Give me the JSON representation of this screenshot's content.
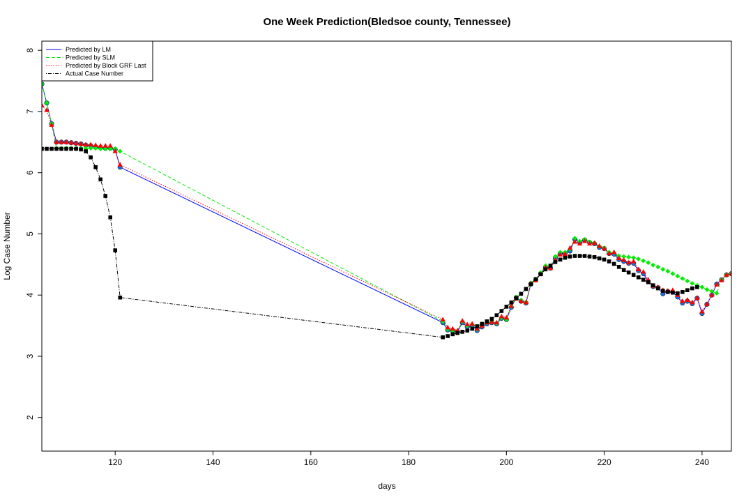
{
  "chart_data": {
    "type": "line",
    "title": "One Week Prediction(Bledsoe county, Tennessee)",
    "xlabel": "days",
    "ylabel": "Log Case Number",
    "xlim": [
      105,
      246
    ],
    "ylim": [
      1.45,
      8.15
    ],
    "xticks": [
      120,
      140,
      160,
      180,
      200,
      220,
      240
    ],
    "yticks": [
      2,
      3,
      4,
      5,
      6,
      7,
      8
    ],
    "grid": false,
    "legend_position": "top-left",
    "legend": [
      {
        "label": "Predicted by LM",
        "color": "#0000ff",
        "style": "solid"
      },
      {
        "label": "Predicted by SLM",
        "color": "#00ee00",
        "style": "dashed"
      },
      {
        "label": "Predicted by Block GRF Last",
        "color": "#ff0000",
        "style": "dotted"
      },
      {
        "label": "Actual Case Number",
        "color": "#000000",
        "style": "dotdash"
      }
    ],
    "series": [
      {
        "name": "Predicted by LM",
        "color": "#0000ff",
        "marker": "circle",
        "x": [
          105,
          106,
          107,
          108,
          109,
          110,
          111,
          112,
          113,
          114,
          115,
          116,
          117,
          118,
          119,
          120,
          121,
          187,
          188,
          189,
          190,
          191,
          192,
          193,
          194,
          195,
          196,
          197,
          198,
          199,
          200,
          201,
          202,
          203,
          204,
          205,
          206,
          207,
          208,
          209,
          210,
          211,
          212,
          213,
          214,
          215,
          216,
          217,
          218,
          219,
          220,
          221,
          222,
          223,
          224,
          225,
          226,
          227,
          228,
          229,
          230,
          231,
          232,
          233,
          234,
          235,
          236,
          237,
          238,
          239,
          240,
          241,
          242,
          243,
          244,
          245,
          246
        ],
        "y": [
          7.45,
          7.14,
          6.8,
          6.5,
          6.5,
          6.5,
          6.49,
          6.48,
          6.47,
          6.45,
          6.44,
          6.42,
          6.41,
          6.4,
          6.4,
          6.38,
          6.09,
          3.55,
          3.43,
          3.42,
          3.4,
          3.55,
          3.48,
          3.5,
          3.42,
          3.48,
          3.53,
          3.55,
          3.53,
          3.62,
          3.6,
          3.8,
          3.96,
          3.9,
          3.87,
          4.18,
          4.25,
          4.35,
          4.45,
          4.44,
          4.6,
          4.68,
          4.68,
          4.72,
          4.91,
          4.86,
          4.9,
          4.86,
          4.84,
          4.78,
          4.76,
          4.68,
          4.67,
          4.58,
          4.55,
          4.52,
          4.52,
          4.4,
          4.35,
          4.22,
          4.14,
          4.12,
          4.02,
          4.06,
          4.05,
          3.97,
          3.87,
          3.9,
          3.86,
          3.95,
          3.7,
          3.85,
          4.0,
          4.18,
          4.25,
          4.33,
          4.35
        ]
      },
      {
        "name": "Predicted by SLM",
        "color": "#00ee00",
        "marker": "diamond",
        "x": [
          105,
          106,
          107,
          108,
          109,
          110,
          111,
          112,
          113,
          114,
          115,
          116,
          117,
          118,
          119,
          120,
          121,
          187,
          188,
          189,
          190,
          191,
          192,
          193,
          194,
          195,
          196,
          197,
          198,
          199,
          200,
          201,
          202,
          203,
          204,
          205,
          206,
          207,
          208,
          209,
          210,
          211,
          212,
          213,
          214,
          215,
          216,
          217,
          218,
          219,
          220,
          221,
          222,
          223,
          224,
          225,
          226,
          227,
          228,
          229,
          230,
          231,
          232,
          233,
          234,
          235,
          236,
          237,
          238,
          239,
          240,
          241,
          242,
          243,
          244,
          245,
          246
        ],
        "y": [
          7.45,
          7.14,
          6.8,
          6.4,
          6.4,
          6.4,
          6.4,
          6.4,
          6.4,
          6.4,
          6.4,
          6.4,
          6.39,
          6.39,
          6.39,
          6.39,
          6.35,
          3.57,
          3.44,
          3.42,
          3.4,
          3.57,
          3.5,
          3.52,
          3.44,
          3.5,
          3.55,
          3.56,
          3.54,
          3.63,
          3.6,
          3.82,
          3.97,
          3.92,
          3.88,
          4.2,
          4.26,
          4.37,
          4.48,
          4.47,
          4.63,
          4.7,
          4.7,
          4.75,
          4.93,
          4.88,
          4.91,
          4.87,
          4.85,
          4.8,
          4.77,
          4.7,
          4.69,
          4.64,
          4.63,
          4.62,
          4.61,
          4.59,
          4.56,
          4.53,
          4.49,
          4.46,
          4.42,
          4.39,
          4.35,
          4.31,
          4.27,
          4.23,
          4.19,
          4.16,
          4.13,
          4.09,
          4.06,
          4.03,
          4.25,
          4.33,
          4.35
        ]
      },
      {
        "name": "Predicted by Block GRF Last",
        "color": "#ff0000",
        "marker": "triangle",
        "x": [
          105,
          106,
          107,
          108,
          109,
          110,
          111,
          112,
          113,
          114,
          115,
          116,
          117,
          118,
          119,
          120,
          121,
          187,
          188,
          189,
          190,
          191,
          192,
          193,
          194,
          195,
          196,
          197,
          198,
          199,
          200,
          201,
          202,
          203,
          204,
          205,
          206,
          207,
          208,
          209,
          210,
          211,
          212,
          213,
          214,
          215,
          216,
          217,
          218,
          219,
          220,
          221,
          222,
          223,
          224,
          225,
          226,
          227,
          228,
          229,
          230,
          231,
          232,
          233,
          234,
          235,
          236,
          237,
          238,
          239,
          240,
          241,
          242,
          243,
          244,
          245,
          246
        ],
        "y": [
          7.1,
          7.02,
          6.78,
          6.5,
          6.5,
          6.5,
          6.49,
          6.48,
          6.47,
          6.46,
          6.46,
          6.45,
          6.44,
          6.44,
          6.44,
          6.35,
          6.13,
          3.6,
          3.47,
          3.45,
          3.42,
          3.58,
          3.52,
          3.53,
          3.45,
          3.5,
          3.55,
          3.56,
          3.55,
          3.65,
          3.63,
          3.82,
          3.94,
          3.9,
          3.88,
          4.19,
          4.24,
          4.34,
          4.45,
          4.44,
          4.57,
          4.66,
          4.67,
          4.77,
          4.87,
          4.84,
          4.88,
          4.84,
          4.85,
          4.8,
          4.76,
          4.68,
          4.7,
          4.6,
          4.57,
          4.53,
          4.55,
          4.42,
          4.38,
          4.25,
          4.15,
          4.13,
          4.08,
          4.07,
          4.08,
          4.0,
          3.9,
          3.92,
          3.88,
          3.95,
          3.73,
          3.85,
          4.0,
          4.17,
          4.24,
          4.33,
          4.35
        ]
      },
      {
        "name": "Actual Case Number",
        "color": "#000000",
        "marker": "square",
        "x": [
          105,
          106,
          107,
          108,
          109,
          110,
          111,
          112,
          113,
          114,
          115,
          116,
          117,
          118,
          119,
          120,
          121,
          187,
          188,
          189,
          190,
          191,
          192,
          193,
          194,
          195,
          196,
          197,
          198,
          199,
          200,
          201,
          202,
          203,
          204,
          205,
          206,
          207,
          208,
          209,
          210,
          211,
          212,
          213,
          214,
          215,
          216,
          217,
          218,
          219,
          220,
          221,
          222,
          223,
          224,
          225,
          226,
          227,
          228,
          229,
          230,
          231,
          232,
          233,
          234,
          235,
          236,
          237,
          238,
          239
        ],
        "y": [
          6.39,
          6.39,
          6.39,
          6.39,
          6.39,
          6.39,
          6.39,
          6.39,
          6.38,
          6.35,
          6.25,
          6.09,
          5.89,
          5.62,
          5.27,
          4.73,
          3.96,
          3.31,
          3.33,
          3.36,
          3.38,
          3.4,
          3.42,
          3.45,
          3.49,
          3.53,
          3.57,
          3.61,
          3.67,
          3.74,
          3.81,
          3.88,
          3.95,
          4.02,
          4.1,
          4.18,
          4.26,
          4.34,
          4.42,
          4.48,
          4.54,
          4.58,
          4.61,
          4.63,
          4.64,
          4.64,
          4.64,
          4.63,
          4.62,
          4.6,
          4.58,
          4.55,
          4.51,
          4.46,
          4.41,
          4.37,
          4.33,
          4.29,
          4.25,
          4.21,
          4.16,
          4.11,
          4.07,
          4.05,
          4.04,
          4.03,
          4.05,
          4.08,
          4.11,
          4.13
        ]
      }
    ]
  }
}
